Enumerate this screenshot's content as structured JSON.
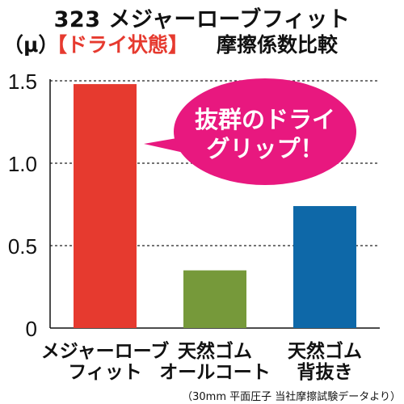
{
  "header": {
    "title_line1": "323 メジャーローブフィット",
    "unit_label": "（μ）",
    "highlight_label": "【ドライ状態】",
    "title_rest": "摩擦係数比較"
  },
  "callout": {
    "line1": "抜群のドライ",
    "line2": "グリップ！",
    "color": "#e8187f"
  },
  "footnote": "（30mm 平面圧子 当社摩擦試験データより）",
  "chart_data": {
    "type": "bar",
    "categories": [
      [
        "メジャーローブ",
        "フィット"
      ],
      [
        "天然ゴム",
        "オールコート"
      ],
      [
        "天然ゴム",
        "背抜き"
      ]
    ],
    "values": [
      1.48,
      0.35,
      0.74
    ],
    "colors": [
      "#e63a2f",
      "#76993a",
      "#0e68a8"
    ],
    "ylim": [
      0,
      1.5
    ],
    "yticks": [
      0,
      0.5,
      1.0,
      1.5
    ],
    "ytick_labels": [
      "0",
      "0.5",
      "1.0",
      "1.5"
    ],
    "grid": true,
    "grid_style": "dashed"
  }
}
